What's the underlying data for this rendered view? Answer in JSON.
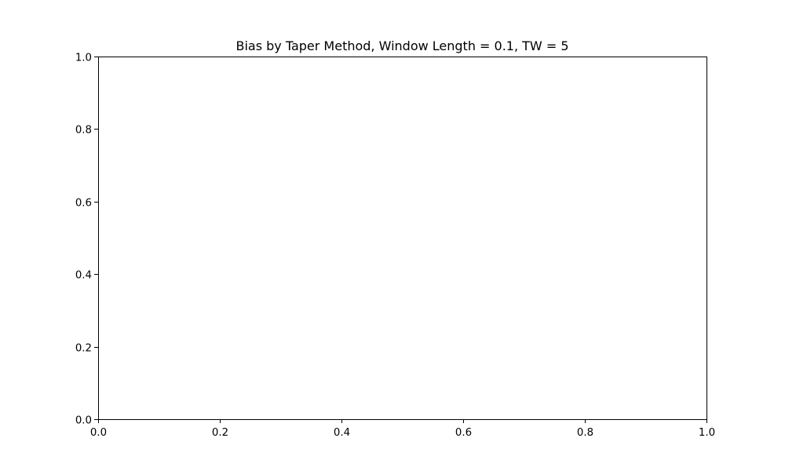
{
  "chart_data": {
    "type": "line",
    "title": "Bias by Taper Method, Window Length = 0.1, TW = 5",
    "xlabel": "",
    "ylabel": "",
    "xlim": [
      0.0,
      1.0
    ],
    "ylim": [
      0.0,
      1.0
    ],
    "xticks": [
      0.0,
      0.2,
      0.4,
      0.6,
      0.8,
      1.0
    ],
    "yticks": [
      0.0,
      0.2,
      0.4,
      0.6,
      0.8,
      1.0
    ],
    "xtick_labels": [
      "0.0",
      "0.2",
      "0.4",
      "0.6",
      "0.8",
      "1.0"
    ],
    "ytick_labels": [
      "0.0",
      "0.2",
      "0.4",
      "0.6",
      "0.8",
      "1.0"
    ],
    "grid": false,
    "series": []
  }
}
